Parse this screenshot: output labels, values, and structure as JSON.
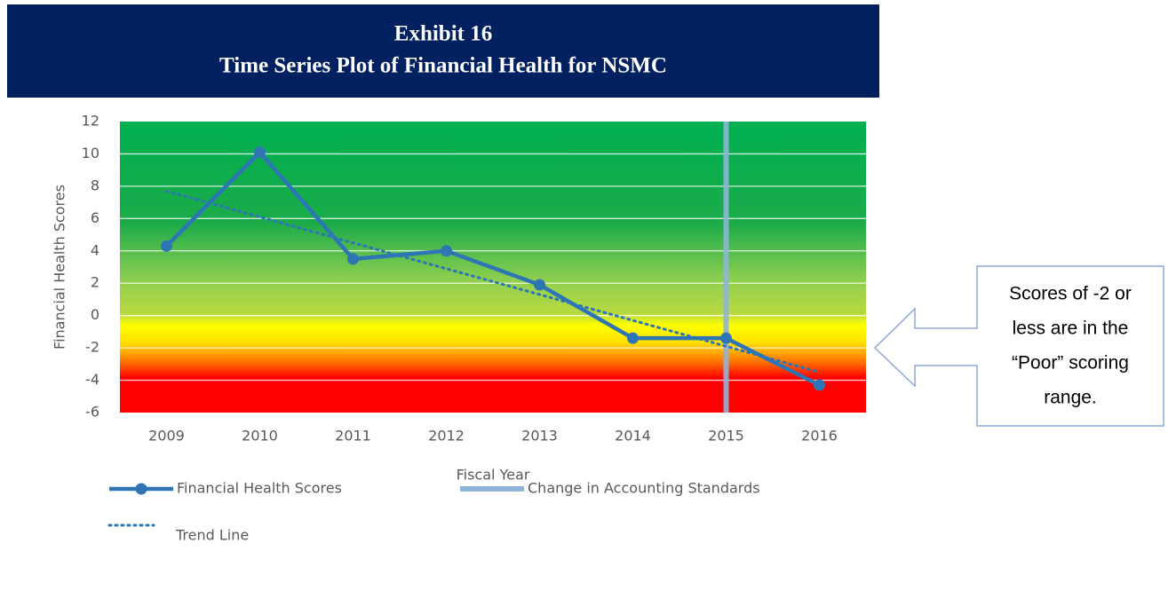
{
  "chart_data": {
    "type": "line",
    "title": "Exhibit 16",
    "subtitle": "Time Series Plot of Financial Health for NSMC",
    "x_label": "Fiscal Year",
    "y_label": "Financial Health Scores",
    "categories": [
      "2009",
      "2010",
      "2011",
      "2012",
      "2013",
      "2014",
      "2015",
      "2016"
    ],
    "series": [
      {
        "name": "Financial Health Scores",
        "color": "#2e75b6",
        "values": [
          4.3,
          10.1,
          3.5,
          4.0,
          1.9,
          -1.4,
          -1.4,
          -4.3
        ]
      },
      {
        "name": "Trend Line",
        "color": "#2e75b6",
        "style": "dotted",
        "values": [
          7.7,
          6.1,
          4.5,
          2.9,
          1.3,
          -0.3,
          -1.9,
          -3.5
        ]
      }
    ],
    "vline": {
      "name": "Change in Accounting Standards",
      "color": "#8fb4d9",
      "x": "2015"
    },
    "ylim": [
      -6,
      12
    ],
    "yticks": [
      -6,
      -4,
      -2,
      0,
      2,
      4,
      6,
      8,
      10,
      12
    ],
    "grid": true,
    "annotation": [
      "Scores of -2 or",
      "less are in the",
      "“Poor” scoring",
      "range."
    ]
  }
}
